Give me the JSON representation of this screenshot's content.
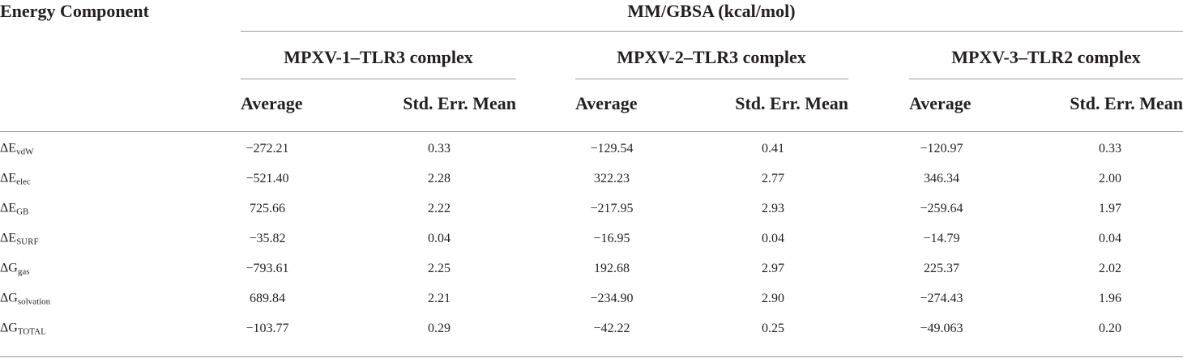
{
  "header": {
    "title": "Energy Component",
    "group_title": "MM/GBSA (kcal/mol)",
    "complexes": [
      "MPXV-1–TLR3 complex",
      "MPXV-2–TLR3 complex",
      "MPXV-3–TLR2 complex"
    ],
    "columns": [
      "Average",
      "Std. Err. Mean",
      "Average",
      "Std. Err. Mean",
      "Average",
      "Std. Err. Mean"
    ]
  },
  "table": {
    "rows": [
      {
        "label": "ΔE",
        "sub": "vdW",
        "cells": [
          "−272.21",
          "0.33",
          "−129.54",
          "0.41",
          "−120.97",
          "0.33"
        ]
      },
      {
        "label": "ΔE",
        "sub": "elec",
        "cells": [
          "−521.40",
          "2.28",
          "322.23",
          "2.77",
          "346.34",
          "2.00"
        ]
      },
      {
        "label": "ΔE",
        "sub": "GB",
        "cells": [
          "725.66",
          "2.22",
          "−217.95",
          "2.93",
          "−259.64",
          "1.97"
        ]
      },
      {
        "label": "ΔE",
        "sub": "SURF",
        "cells": [
          "−35.82",
          "0.04",
          "−16.95",
          "0.04",
          "−14.79",
          "0.04"
        ]
      },
      {
        "label": "ΔG",
        "sub": "gas",
        "cells": [
          "−793.61",
          "2.25",
          "192.68",
          "2.97",
          "225.37",
          "2.02"
        ]
      },
      {
        "label": "ΔG",
        "sub": "solvation",
        "cells": [
          "689.84",
          "2.21",
          "−234.90",
          "2.90",
          "−274.43",
          "1.96"
        ]
      },
      {
        "label": "ΔG",
        "sub": "TOTAL",
        "cells": [
          "−103.77",
          "0.29",
          "−42.22",
          "0.25",
          "−49.063",
          "0.20"
        ]
      }
    ]
  }
}
